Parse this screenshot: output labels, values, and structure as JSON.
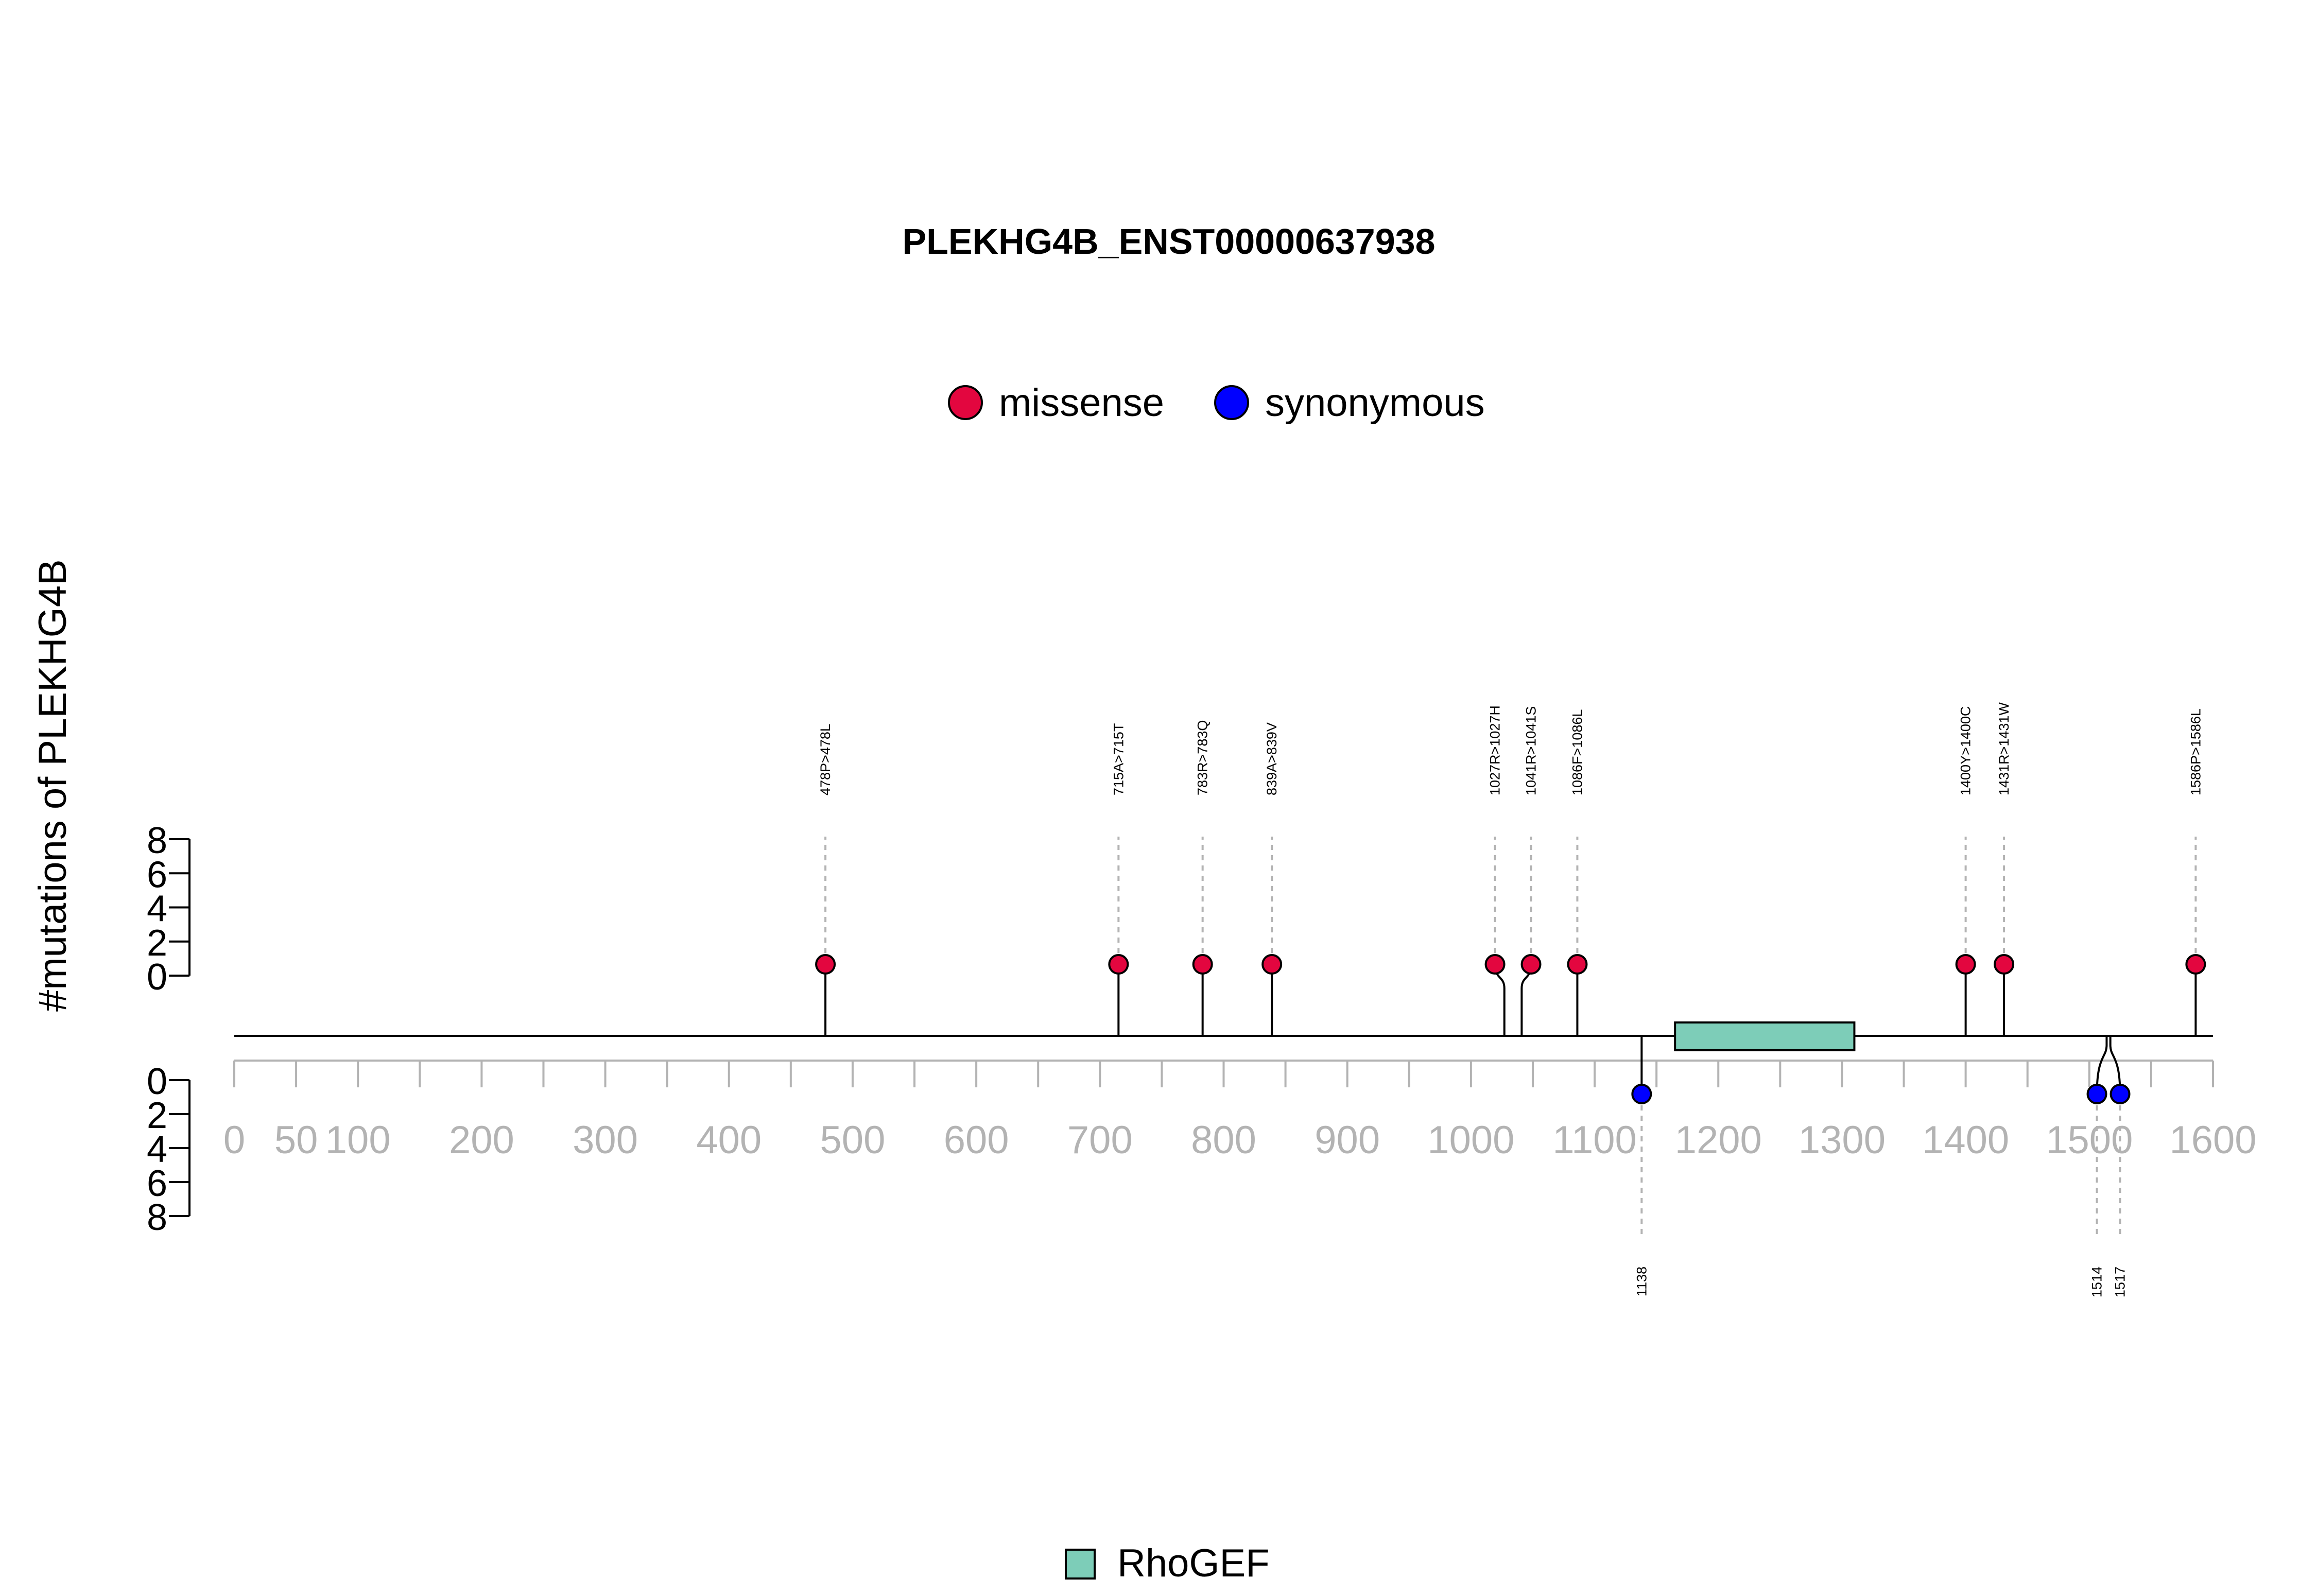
{
  "chart_data": {
    "type": "lollipop",
    "title": "PLEKHG4B_ENST00000637938",
    "ylabel": "#mutations of PLEKHG4B",
    "protein_length": 1600,
    "xlim": [
      0,
      1600
    ],
    "ylim": [
      0,
      8
    ],
    "x_ticks": [
      0,
      50,
      100,
      200,
      300,
      400,
      500,
      600,
      700,
      800,
      900,
      1000,
      1100,
      1200,
      1300,
      1400,
      1500,
      1600
    ],
    "y_ticks": [
      0,
      2,
      4,
      6,
      8
    ],
    "legend": [
      {
        "name": "missense",
        "color": "#e3063f"
      },
      {
        "name": "synonymous",
        "color": "#0000ff"
      }
    ],
    "domains": [
      {
        "name": "RhoGEF",
        "start": 1165,
        "end": 1310,
        "color": "#7dcdb8"
      }
    ],
    "mutations": [
      {
        "label": "478P>478L",
        "position": 478,
        "count": 1,
        "type": "missense",
        "side": "top"
      },
      {
        "label": "715A>715T",
        "position": 715,
        "count": 1,
        "type": "missense",
        "side": "top"
      },
      {
        "label": "783R>783Q",
        "position": 783,
        "count": 1,
        "type": "missense",
        "side": "top"
      },
      {
        "label": "839A>839V",
        "position": 839,
        "count": 1,
        "type": "missense",
        "side": "top"
      },
      {
        "label": "1027R>1027H",
        "position": 1027,
        "count": 1,
        "type": "missense",
        "side": "top"
      },
      {
        "label": "1041R>1041S",
        "position": 1041,
        "count": 1,
        "type": "missense",
        "side": "top"
      },
      {
        "label": "1086F>1086L",
        "position": 1086,
        "count": 1,
        "type": "missense",
        "side": "top"
      },
      {
        "label": "1400Y>1400C",
        "position": 1400,
        "count": 1,
        "type": "missense",
        "side": "top"
      },
      {
        "label": "1431R>1431W",
        "position": 1431,
        "count": 1,
        "type": "missense",
        "side": "top"
      },
      {
        "label": "1586P>1586L",
        "position": 1586,
        "count": 1,
        "type": "missense",
        "side": "top"
      },
      {
        "label": "1138",
        "position": 1138,
        "count": 1,
        "type": "synonymous",
        "side": "bottom"
      },
      {
        "label": "1514",
        "position": 1514,
        "count": 1,
        "type": "synonymous",
        "side": "bottom"
      },
      {
        "label": "1517",
        "position": 1517,
        "count": 1,
        "type": "synonymous",
        "side": "bottom"
      }
    ]
  }
}
